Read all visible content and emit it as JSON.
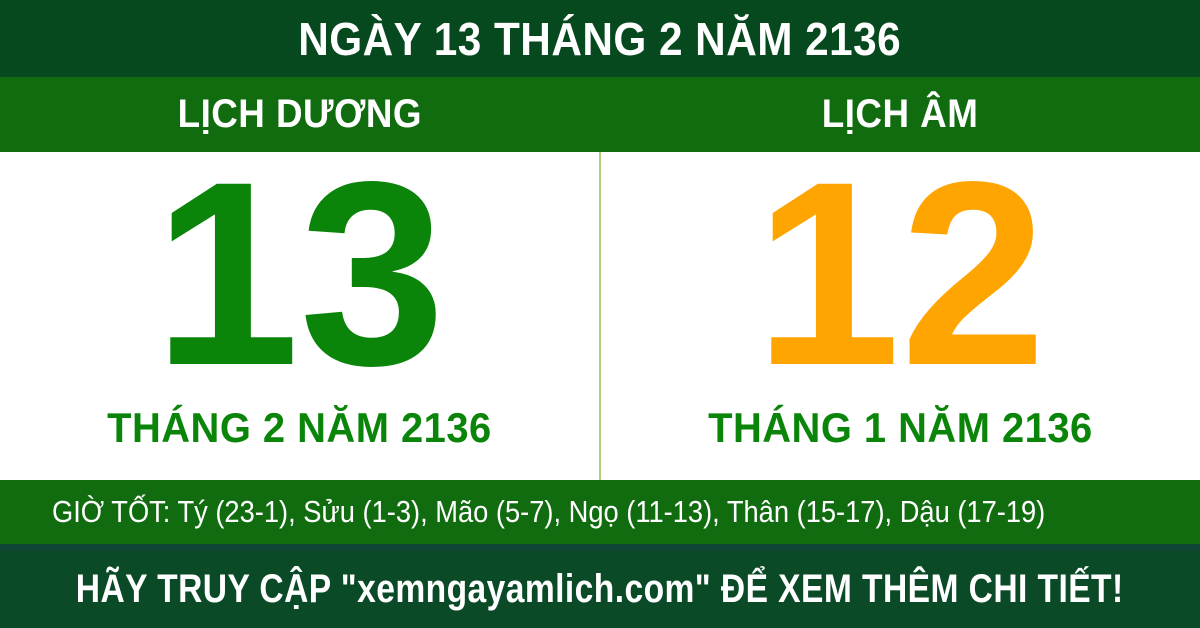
{
  "header": {
    "title": "NGÀY 13 THÁNG 2 NĂM 2136"
  },
  "calendar": {
    "solar": {
      "label": "LỊCH DƯƠNG",
      "day": "13",
      "subtitle": "THÁNG 2 NĂM 2136"
    },
    "lunar": {
      "label": "LỊCH ÂM",
      "day": "12",
      "subtitle": "THÁNG 1 NĂM 2136"
    }
  },
  "good_hours": {
    "text": "GIỜ TỐT: Tý (23-1), Sửu (1-3), Mão (5-7), Ngọ (11-13), Thân (15-17), Dậu (17-19)"
  },
  "footer": {
    "text": "HÃY TRUY CẬP \"xemngayamlich.com\" ĐỂ XEM THÊM CHI TIẾT!"
  },
  "colors": {
    "header_bg": "#06491e",
    "band_bg": "#116c10",
    "panel_bg": "#ffffff",
    "divider": "#a8d07d",
    "solar_day": "#0a850a",
    "lunar_day": "#ffa502",
    "subtitle": "#0a850a",
    "hours_bg": "#116c10",
    "separator": "#0e4534",
    "footer_bg": "#0a4a27",
    "text_light": "#ffffff"
  }
}
